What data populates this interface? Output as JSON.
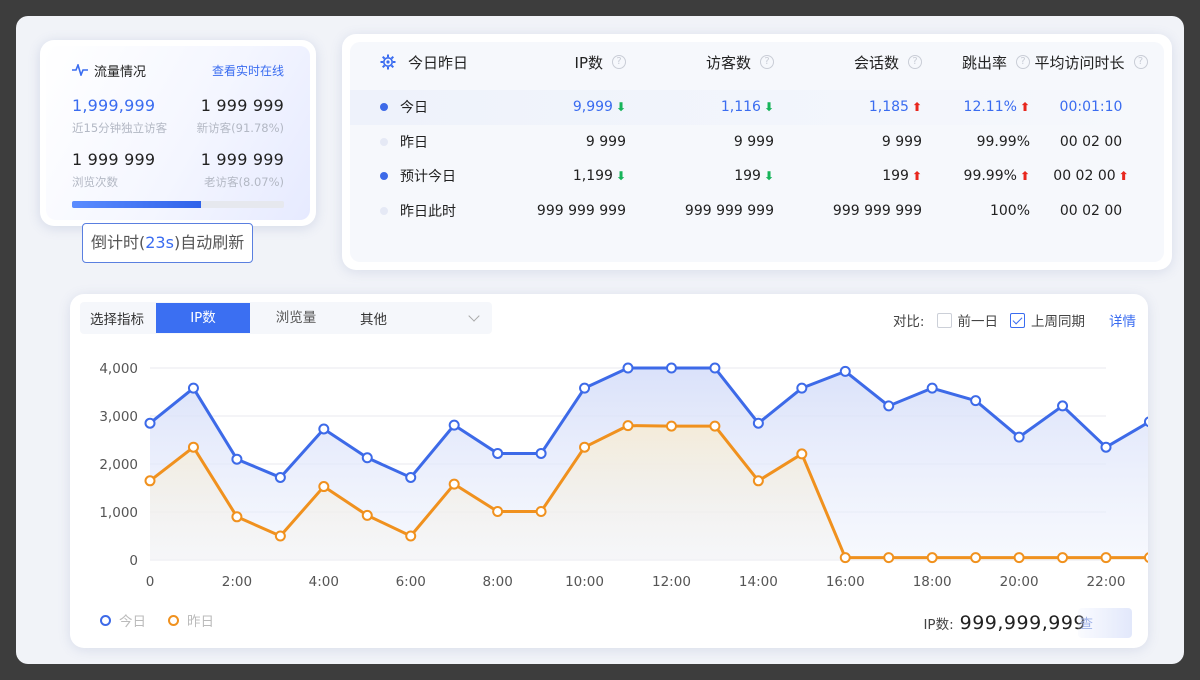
{
  "traffic": {
    "title": "流量情况",
    "realtime_link": "查看实时在线",
    "stats": [
      {
        "value": "1,999,999",
        "label": "近15分钟独立访客",
        "highlight": true
      },
      {
        "value": "1 999 999",
        "label": "新访客(91.78%)",
        "highlight": false
      },
      {
        "value": "1 999 999",
        "label": "浏览次数",
        "highlight": false
      },
      {
        "value": "1 999 999",
        "label": "老访客(8.07%)",
        "highlight": false
      }
    ],
    "progress_fraction": 0.61
  },
  "refresh": {
    "prefix": "倒计时(",
    "seconds": "23s",
    "suffix": ")自动刷新"
  },
  "stats_table": {
    "header": {
      "title": "今日昨日",
      "cols": [
        "IP数",
        "访客数",
        "会话数",
        "跳出率",
        "平均访问时长"
      ]
    },
    "rows": [
      {
        "name": "今日",
        "dot": "blue",
        "cells": [
          {
            "v": "9,999",
            "t": "down",
            "c": "blue"
          },
          {
            "v": "1,116",
            "t": "down",
            "c": "blue"
          },
          {
            "v": "1,185",
            "t": "up",
            "c": "blue"
          },
          {
            "v": "12.11%",
            "t": "up",
            "c": "blue"
          },
          {
            "v": "00:01:10",
            "t": "",
            "c": "blue"
          }
        ]
      },
      {
        "name": "昨日",
        "dot": "pale",
        "cells": [
          {
            "v": "9 999",
            "t": "",
            "c": ""
          },
          {
            "v": "9 999",
            "t": "",
            "c": ""
          },
          {
            "v": "9 999",
            "t": "",
            "c": ""
          },
          {
            "v": "99.99%",
            "t": "",
            "c": ""
          },
          {
            "v": "00 02 00",
            "t": "",
            "c": ""
          }
        ]
      },
      {
        "name": "预计今日",
        "dot": "blue",
        "cells": [
          {
            "v": "1,199",
            "t": "down",
            "c": ""
          },
          {
            "v": "199",
            "t": "down",
            "c": ""
          },
          {
            "v": "199",
            "t": "up",
            "c": ""
          },
          {
            "v": "99.99%",
            "t": "up",
            "c": ""
          },
          {
            "v": "00 02 00",
            "t": "up",
            "c": ""
          }
        ]
      },
      {
        "name": "昨日此时",
        "dot": "pale",
        "cells": [
          {
            "v": "999 999 999",
            "t": "",
            "c": ""
          },
          {
            "v": "999 999 999",
            "t": "",
            "c": ""
          },
          {
            "v": "999 999 999",
            "t": "",
            "c": ""
          },
          {
            "v": "100%",
            "t": "",
            "c": ""
          },
          {
            "v": "00 02 00",
            "t": "",
            "c": ""
          }
        ]
      }
    ]
  },
  "metric_tabs": {
    "label": "选择指标",
    "tabs": [
      "IP数",
      "浏览量"
    ],
    "active": 0,
    "select_value": "其他"
  },
  "compare": {
    "label": "对比:",
    "options": [
      {
        "label": "前一日",
        "checked": false
      },
      {
        "label": "上周同期",
        "checked": true
      }
    ],
    "detail": "详情"
  },
  "chart_data": {
    "type": "line",
    "x": [
      0,
      1,
      2,
      3,
      4,
      5,
      6,
      7,
      8,
      9,
      10,
      11,
      12,
      13,
      14,
      15,
      16,
      17,
      18,
      19,
      20,
      21,
      22,
      23
    ],
    "x_tick_labels": [
      "0",
      "2:00",
      "4:00",
      "6:00",
      "8:00",
      "10:00",
      "12:00",
      "14:00",
      "16:00",
      "18:00",
      "20:00",
      "22:00"
    ],
    "y_tick_labels": [
      "0",
      "1,000",
      "2,000",
      "3,000",
      "4,000"
    ],
    "ylim": [
      0,
      4000
    ],
    "grid": true,
    "legend_position": "bottom-left",
    "series": [
      {
        "name": "今日",
        "color": "#3d6ae8",
        "values": [
          2850,
          3580,
          2100,
          1720,
          2730,
          2130,
          1720,
          2810,
          2220,
          2220,
          3580,
          4000,
          4000,
          4000,
          2850,
          3580,
          3930,
          3210,
          3580,
          3320,
          2560,
          3210,
          2350,
          2880
        ]
      },
      {
        "name": "昨日",
        "color": "#f0911e",
        "values": [
          1650,
          2350,
          900,
          500,
          1530,
          930,
          500,
          1580,
          1010,
          1010,
          2350,
          2800,
          2790,
          2790,
          1650,
          2210,
          50,
          50,
          50,
          50,
          50,
          50,
          50,
          50
        ]
      }
    ]
  },
  "total": {
    "label": "IP数:",
    "value": "999,999,999",
    "trailing": "查"
  },
  "colors": {
    "accent": "#3a6cf0",
    "today": "#3d6ae8",
    "yesterday": "#f0911e",
    "up": "#e8271e",
    "down": "#17b45a"
  }
}
